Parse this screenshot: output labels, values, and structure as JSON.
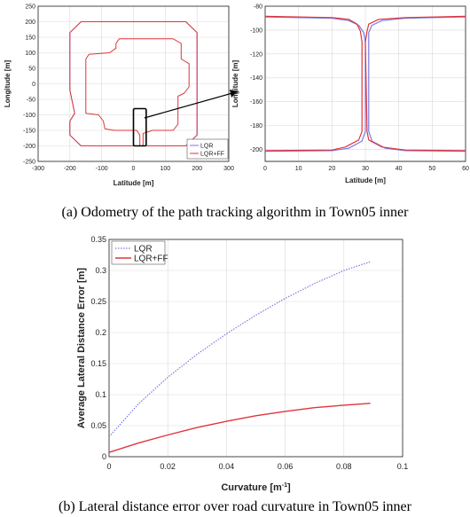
{
  "colors": {
    "lqr": "#7a7ae6",
    "lqrff": "#e0353b",
    "zoom_box": "#000000"
  },
  "panel_a": {
    "caption": "(a) Odometry of the path tracking algorithm in Town05 inner"
  },
  "panel_b": {
    "caption": "(b) Lateral distance error over road curvature in Town05 inner"
  },
  "chart_data": [
    {
      "id": "a-left",
      "type": "line",
      "xlabel": "Latitude [m]",
      "ylabel": "Longitude [m]",
      "xlim": [
        -300,
        300
      ],
      "ylim": [
        -250,
        250
      ],
      "xticks": [
        "-300",
        "-200",
        "-100",
        "0",
        "100",
        "200",
        "300"
      ],
      "yticks": [
        "-250",
        "-200",
        "-150",
        "-100",
        "-50",
        "0",
        "50",
        "100",
        "150",
        "200",
        "250"
      ],
      "xtick_values": [
        -300,
        -200,
        -100,
        0,
        100,
        200,
        300
      ],
      "ytick_values": [
        -250,
        -200,
        -150,
        -100,
        -50,
        0,
        50,
        100,
        150,
        200,
        250
      ],
      "grid": true,
      "legend": "bottom-right",
      "series": [
        {
          "name": "LQR",
          "points": [
            [
              25,
              -200
            ],
            [
              165,
              -200
            ],
            [
              200,
              -165
            ],
            [
              200,
              165
            ],
            [
              165,
              200
            ],
            [
              -165,
              200
            ],
            [
              -200,
              165
            ],
            [
              -200,
              40
            ],
            [
              -200,
              -20
            ],
            [
              -185,
              -95
            ],
            [
              -200,
              -120
            ],
            [
              -200,
              -165
            ],
            [
              -165,
              -200
            ],
            [
              10,
              -200
            ],
            [
              25,
              -200
            ]
          ]
        },
        {
          "name": "LQR+FF",
          "points": [
            [
              25,
              -200
            ],
            [
              165,
              -200
            ],
            [
              200,
              -165
            ],
            [
              200,
              165
            ],
            [
              165,
              200
            ],
            [
              -165,
              200
            ],
            [
              -200,
              165
            ],
            [
              -200,
              40
            ],
            [
              -200,
              -20
            ],
            [
              -185,
              -95
            ],
            [
              -200,
              -120
            ],
            [
              -200,
              -165
            ],
            [
              -165,
              -200
            ],
            [
              10,
              -200
            ],
            [
              25,
              -200
            ]
          ]
        }
      ],
      "inner_path": [
        [
          30,
          -200
        ],
        [
          30,
          -160
        ],
        [
          60,
          -150
        ],
        [
          125,
          -150
        ],
        [
          140,
          -130
        ],
        [
          140,
          -40
        ],
        [
          160,
          -30
        ],
        [
          175,
          -10
        ],
        [
          175,
          65
        ],
        [
          150,
          80
        ],
        [
          150,
          130
        ],
        [
          125,
          145
        ],
        [
          -45,
          145
        ],
        [
          -55,
          130
        ],
        [
          -55,
          115
        ],
        [
          -75,
          100
        ],
        [
          -140,
          95
        ],
        [
          -150,
          80
        ],
        [
          -150,
          -95
        ],
        [
          -110,
          -100
        ],
        [
          -95,
          -120
        ],
        [
          -90,
          -145
        ],
        [
          -60,
          -150
        ],
        [
          10,
          -150
        ],
        [
          20,
          -165
        ],
        [
          20,
          -200
        ]
      ],
      "zoom_box": {
        "x": [
          0,
          40
        ],
        "y": [
          -200,
          -80
        ]
      }
    },
    {
      "id": "a-right",
      "type": "line",
      "xlabel": "Latitude [m]",
      "ylabel": "Longitude [m]",
      "xlim": [
        0,
        60
      ],
      "ylim": [
        -210,
        -80
      ],
      "xticks": [
        "0",
        "10",
        "20",
        "30",
        "40",
        "50",
        "60"
      ],
      "yticks": [
        "-80",
        "-100",
        "-120",
        "-140",
        "-160",
        "-180",
        "-200"
      ],
      "xtick_values": [
        0,
        10,
        20,
        30,
        40,
        50,
        60
      ],
      "ytick_values": [
        -80,
        -100,
        -120,
        -140,
        -160,
        -180,
        -200
      ],
      "grid": true,
      "series": [
        {
          "name": "LQR",
          "segments": [
            [
              [
                0,
                -89
              ],
              [
                20,
                -90
              ],
              [
                25,
                -92
              ],
              [
                28,
                -96
              ],
              [
                29.5,
                -102
              ],
              [
                30,
                -110
              ],
              [
                30,
                -185
              ],
              [
                29,
                -193
              ],
              [
                25,
                -199
              ],
              [
                20,
                -201
              ],
              [
                0,
                -201.5
              ]
            ],
            [
              [
                60,
                -89
              ],
              [
                42,
                -90
              ],
              [
                35,
                -92
              ],
              [
                32,
                -96
              ],
              [
                31,
                -102
              ],
              [
                31,
                -185
              ],
              [
                32,
                -193
              ],
              [
                36,
                -199
              ],
              [
                42,
                -201
              ],
              [
                60,
                -201.5
              ]
            ]
          ]
        },
        {
          "name": "LQR+FF",
          "segments": [
            [
              [
                0,
                -88.5
              ],
              [
                20,
                -89.5
              ],
              [
                25,
                -91
              ],
              [
                27.5,
                -95
              ],
              [
                28.5,
                -101
              ],
              [
                29,
                -110
              ],
              [
                29,
                -185
              ],
              [
                28,
                -192
              ],
              [
                24,
                -198
              ],
              [
                20,
                -200.5
              ],
              [
                0,
                -201
              ]
            ],
            [
              [
                60,
                -88.5
              ],
              [
                42,
                -89.5
              ],
              [
                34,
                -91
              ],
              [
                31,
                -95
              ],
              [
                30.5,
                -101
              ],
              [
                30,
                -110
              ],
              [
                30.5,
                -185
              ],
              [
                31,
                -192
              ],
              [
                35,
                -198
              ],
              [
                42,
                -200.5
              ],
              [
                60,
                -201
              ]
            ]
          ]
        }
      ]
    },
    {
      "id": "b",
      "type": "line",
      "xlabel": "Curvature [m",
      "xlabel_sup": "-1",
      "xlabel_tail": "]",
      "ylabel": "Average Lateral Distance Error [m]",
      "xlim": [
        0,
        0.1
      ],
      "ylim": [
        0,
        0.35
      ],
      "xticks": [
        "0",
        "0.02",
        "0.04",
        "0.06",
        "0.08",
        "0.1"
      ],
      "yticks": [
        "0",
        "0.05",
        "0.1",
        "0.15",
        "0.2",
        "0.25",
        "0.3",
        "0.35"
      ],
      "xtick_values": [
        0,
        0.02,
        0.04,
        0.06,
        0.08,
        0.1
      ],
      "ytick_values": [
        0,
        0.05,
        0.1,
        0.15,
        0.2,
        0.25,
        0.3,
        0.35
      ],
      "grid": true,
      "legend": "top-left",
      "series": [
        {
          "name": "LQR",
          "x": [
            0,
            0.01,
            0.02,
            0.03,
            0.04,
            0.05,
            0.06,
            0.07,
            0.08,
            0.089
          ],
          "y": [
            0.032,
            0.085,
            0.128,
            0.165,
            0.198,
            0.228,
            0.255,
            0.279,
            0.3,
            0.314
          ]
        },
        {
          "name": "LQR+FF",
          "x": [
            0,
            0.01,
            0.02,
            0.03,
            0.04,
            0.05,
            0.06,
            0.07,
            0.08,
            0.089
          ],
          "y": [
            0.007,
            0.022,
            0.035,
            0.047,
            0.057,
            0.066,
            0.073,
            0.079,
            0.083,
            0.086
          ]
        }
      ]
    }
  ]
}
